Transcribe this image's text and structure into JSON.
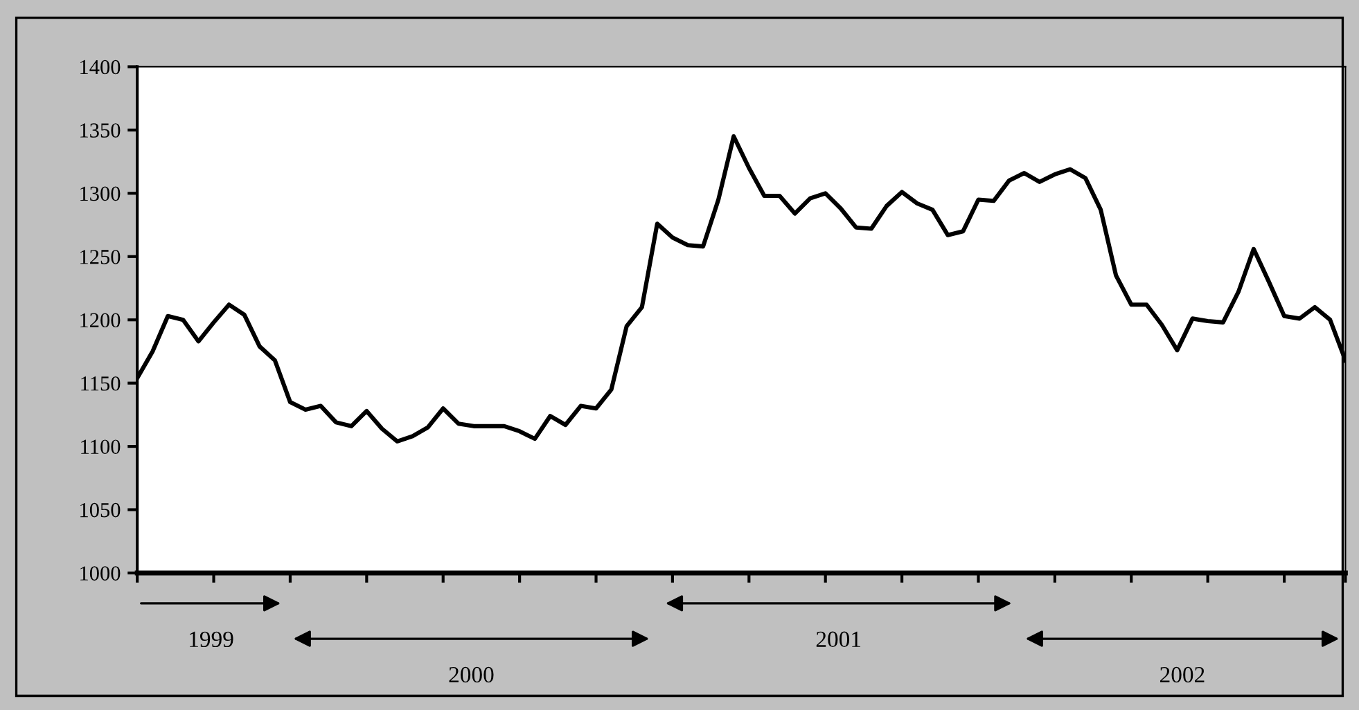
{
  "chart_data": {
    "type": "line",
    "categories": [
      null,
      null,
      null,
      null,
      null,
      null,
      null,
      null,
      null,
      null,
      null,
      null,
      null,
      null,
      null,
      null,
      null,
      null,
      null,
      null,
      null,
      null,
      null,
      null,
      null,
      null,
      null,
      null,
      null,
      null,
      null,
      null,
      null,
      null,
      null,
      null,
      null,
      null,
      null,
      null,
      null,
      null,
      null,
      null,
      null,
      null,
      null,
      null,
      null,
      null,
      null,
      null,
      null,
      null,
      null,
      null,
      null,
      null,
      null,
      null,
      null,
      null,
      null,
      null,
      null,
      null,
      null,
      null,
      null,
      null,
      null,
      null,
      null,
      null,
      null,
      null,
      null,
      null,
      null,
      null
    ],
    "series": [
      {
        "color": "#000000",
        "values": [
          1154,
          1175,
          1203,
          1200,
          1183,
          1198,
          1212,
          1204,
          1179,
          1168,
          1135,
          1129,
          1132,
          1119,
          1116,
          1128,
          1114,
          1104,
          1108,
          1115,
          1130,
          1118,
          1116,
          1116,
          1116,
          1112,
          1106,
          1124,
          1117,
          1132,
          1130,
          1145,
          1195,
          1210,
          1276,
          1265,
          1259,
          1258,
          1295,
          1345,
          1320,
          1298,
          1298,
          1284,
          1296,
          1300,
          1288,
          1273,
          1272,
          1290,
          1301,
          1292,
          1287,
          1267,
          1270,
          1295,
          1294,
          1310,
          1316,
          1309,
          1315,
          1319,
          1312,
          1287,
          1235,
          1212,
          1212,
          1196,
          1176,
          1201,
          1199,
          1198,
          1222,
          1256,
          1230,
          1203,
          1201,
          1210,
          1200,
          1168
        ]
      }
    ],
    "ylim": [
      1000,
      1400
    ],
    "yticks": [
      1000,
      1050,
      1100,
      1150,
      1200,
      1250,
      1300,
      1350,
      1400
    ],
    "grid": false,
    "marker": "none",
    "line_style": "solid",
    "annotations": [
      "1999",
      "2000",
      "2001",
      "2002"
    ]
  }
}
